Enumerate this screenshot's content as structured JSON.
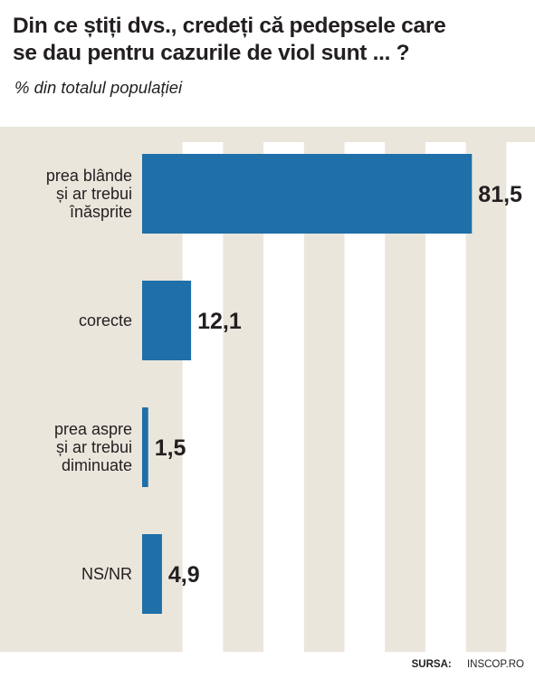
{
  "title_lines": [
    "Din ce știți dvs., credeți că pedepsele care",
    "se dau pentru cazurile de viol sunt ... ?"
  ],
  "subtitle": "% din totalul populației",
  "source": {
    "label": "SURSA:",
    "value": "INSCOP.RO"
  },
  "colors": {
    "panel": "#eae6dc",
    "stripe": "#ffffff",
    "bar": "#1f6fa8",
    "text": "#231f20"
  },
  "chart_data": {
    "type": "bar",
    "orientation": "horizontal",
    "categories": [
      [
        "prea blânde",
        "și ar trebui",
        "înăsprite"
      ],
      [
        "corecte"
      ],
      [
        "prea aspre",
        "și ar trebui",
        "diminuate"
      ],
      [
        "NS/NR"
      ]
    ],
    "values": [
      81.5,
      12.1,
      1.5,
      4.9
    ],
    "value_labels": [
      "81,5",
      "12,1",
      "1,5",
      "4,9"
    ],
    "xlim": [
      0,
      100
    ],
    "grid": true
  }
}
